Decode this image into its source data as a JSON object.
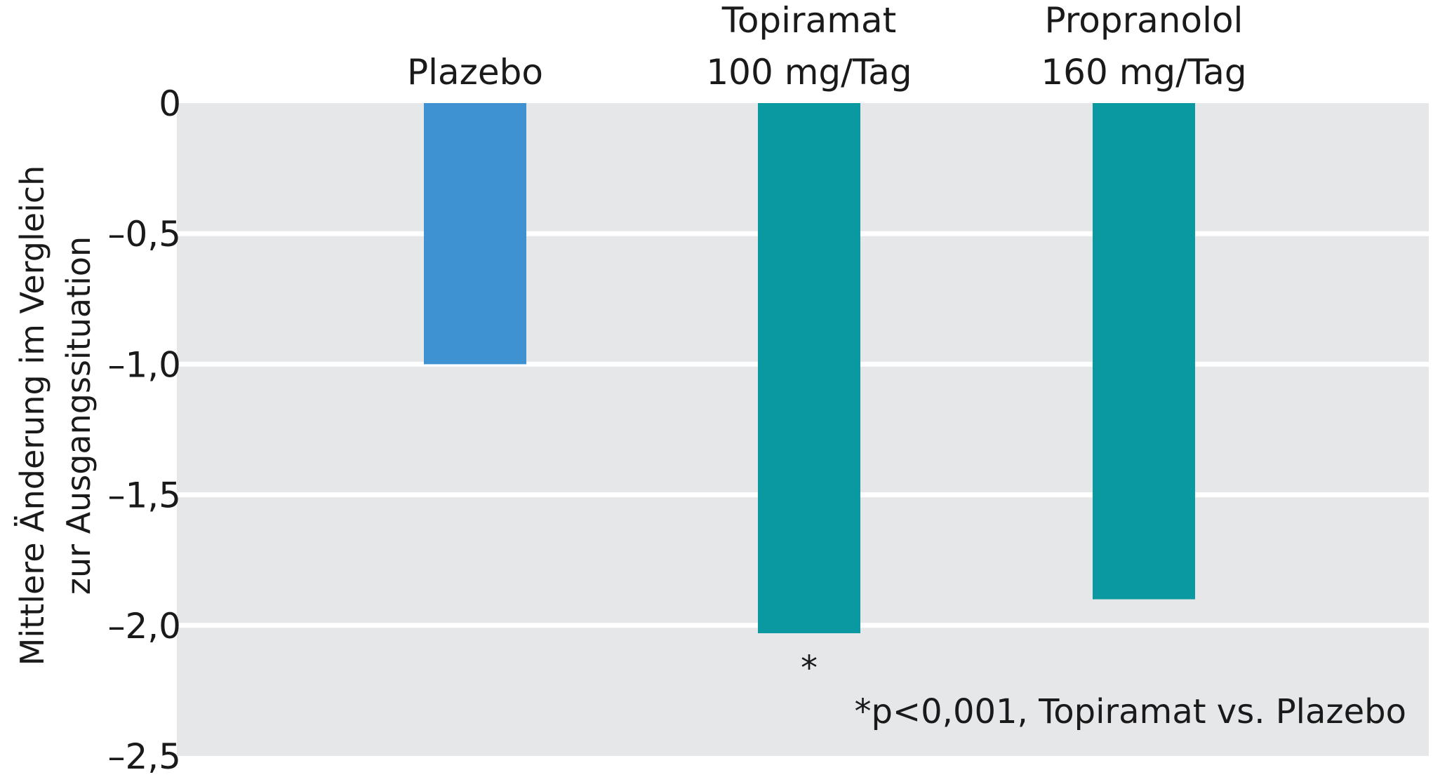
{
  "chart_data": {
    "type": "bar",
    "categories": [
      [
        "Plazebo"
      ],
      [
        "Topiramat",
        "100 mg/Tag"
      ],
      [
        "Propranolol",
        "160 mg/Tag"
      ]
    ],
    "values": [
      -1.0,
      -2.03,
      -1.9
    ],
    "colors": [
      "#3f92d2",
      "#0a99a1",
      "#0a99a1"
    ],
    "ylabel": [
      "Mittlere Änderung im Vergleich",
      "zur Ausgangssituation"
    ],
    "ylim": [
      -2.5,
      0
    ],
    "yticks": [
      {
        "value": 0,
        "label": "0"
      },
      {
        "value": -0.5,
        "label": "–0,5"
      },
      {
        "value": -1.0,
        "label": "–1,0"
      },
      {
        "value": -1.5,
        "label": "–1,5"
      },
      {
        "value": -2.0,
        "label": "–2,0"
      },
      {
        "value": -2.5,
        "label": "–2,5"
      }
    ],
    "grid": true,
    "background": "#e6e7e9",
    "significance_marker": {
      "category_index": 1,
      "symbol": "*"
    },
    "footnote": "*p<0,001, Topiramat vs. Plazebo"
  }
}
